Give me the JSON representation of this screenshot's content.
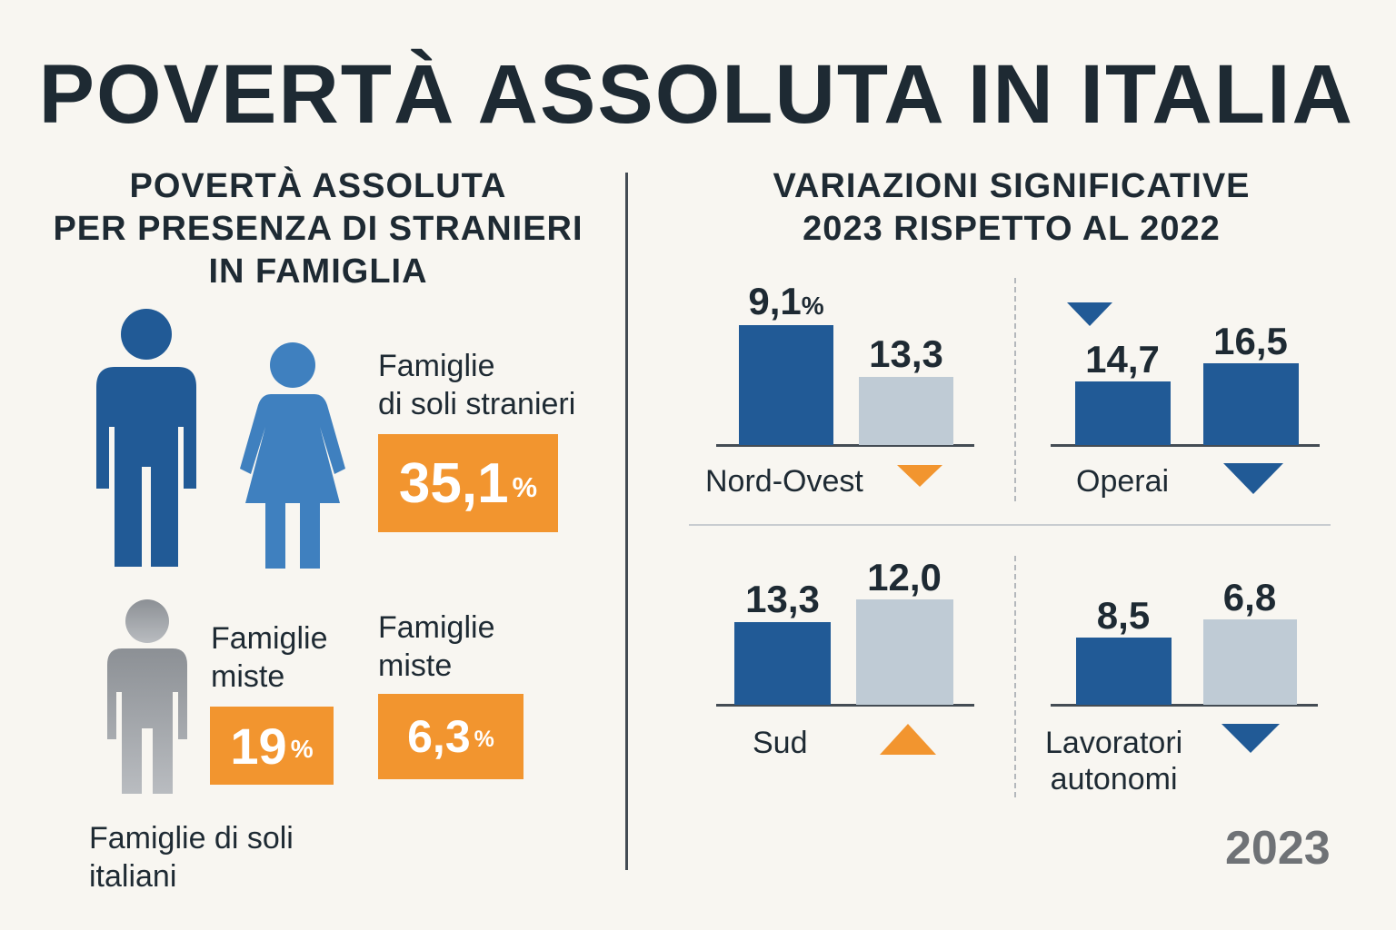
{
  "title": "POVERTÀ ASSOLUTA IN ITALIA",
  "left": {
    "title_lines": [
      "POVERTÀ ASSOLUTA",
      "PER PRESENZA DI STRANIERI",
      "IN FAMIGLIA"
    ],
    "solo_stranieri": {
      "label_lines": [
        "Famiglie",
        "di soli stranieri"
      ],
      "value": "35,1",
      "unit": "%"
    },
    "miste_a": {
      "label_lines": [
        "Famiglie",
        "miste"
      ],
      "value": "19",
      "unit": "%"
    },
    "miste_b": {
      "label_lines": [
        "Famiglie",
        "miste"
      ],
      "value": "6,3",
      "unit": "%"
    },
    "soli_italiani": {
      "label_lines": [
        "Famiglie di soli",
        "italiani"
      ]
    },
    "icons": {
      "man": "man-icon",
      "woman": "woman-icon",
      "person_gray": "person-icon"
    },
    "colors": {
      "man": "#215a96",
      "woman": "#3f80bf",
      "gray": "#9a9ea3",
      "badge": "#f2952f"
    }
  },
  "right": {
    "title_lines": [
      "VARIAZIONI SIGNIFICATIVE",
      "2023 RISPETTO AL 2022"
    ],
    "year": "2023",
    "colors": {
      "dark_bar": "#215a96",
      "light_bar": "#bfcbd5",
      "orange": "#f2952f"
    }
  },
  "chart_data": [
    {
      "type": "bar",
      "category": "Nord-Ovest",
      "values": [
        9.1,
        13.3
      ],
      "labels": [
        "9,1",
        "13,3"
      ],
      "first_unit": "%",
      "arrow": "down",
      "arrow_color": "#f2952f"
    },
    {
      "type": "bar",
      "category": "Operai",
      "values": [
        14.7,
        16.5
      ],
      "labels": [
        "14,7",
        "16,5"
      ],
      "arrow": "down",
      "arrow_color": "#215a96"
    },
    {
      "type": "bar",
      "category": "Sud",
      "values": [
        13.3,
        12.0
      ],
      "labels": [
        "13,3",
        "12,0"
      ],
      "arrow": "up",
      "arrow_color": "#f2952f"
    },
    {
      "type": "bar",
      "category": "Lavoratori autonomi",
      "category_lines": [
        "Lavoratori",
        "autonomi"
      ],
      "values": [
        8.5,
        6.8
      ],
      "labels": [
        "8,5",
        "6,8"
      ],
      "arrow": "down",
      "arrow_color": "#215a96"
    }
  ]
}
